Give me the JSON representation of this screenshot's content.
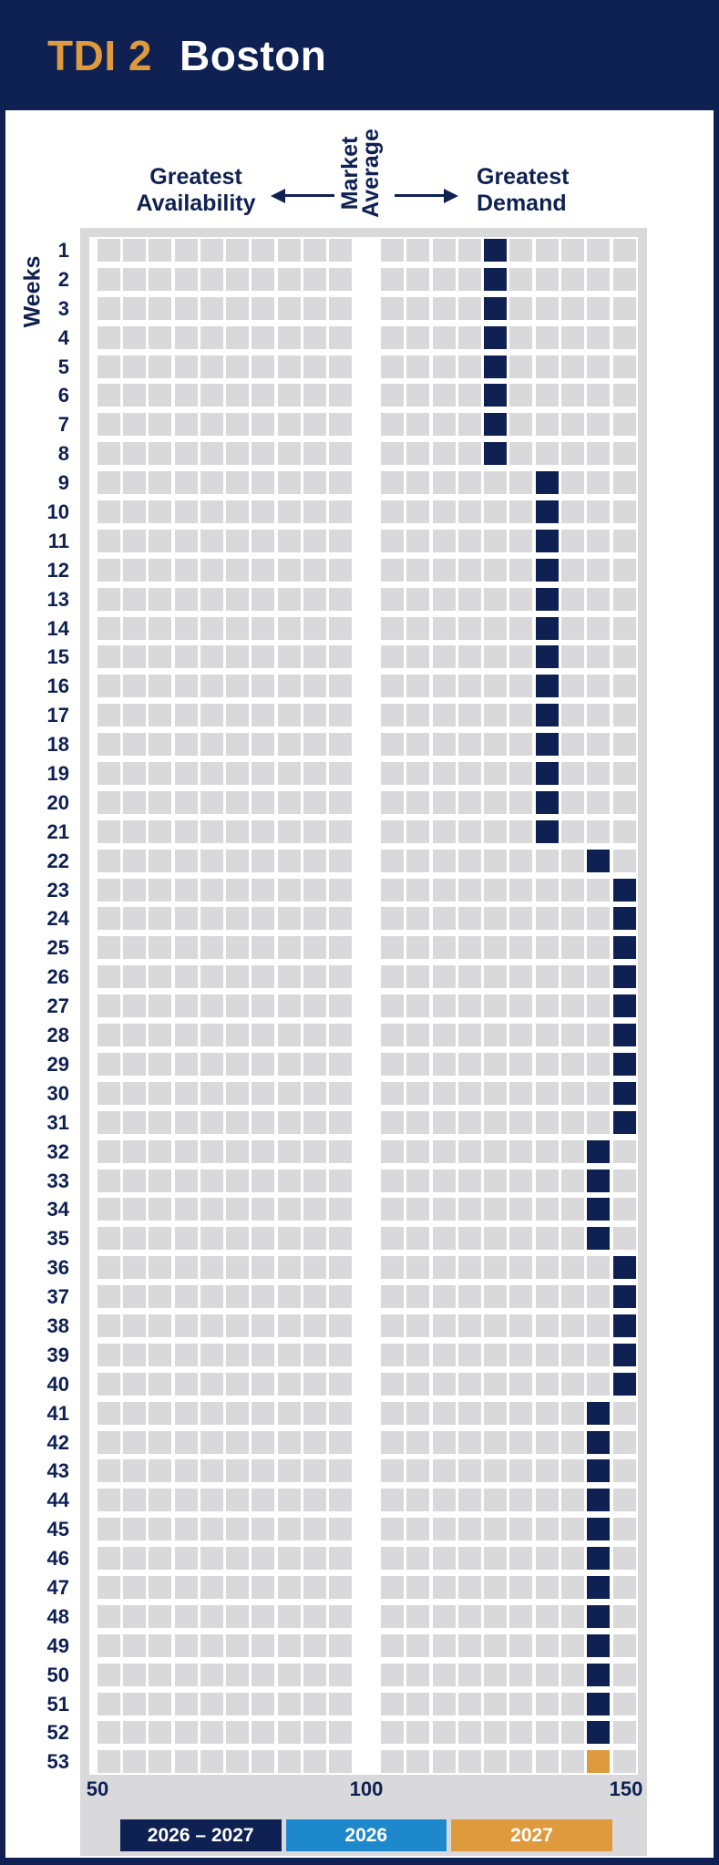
{
  "header": {
    "brand": "TDI 2",
    "city": "Boston"
  },
  "colors": {
    "navy": "#0e2152",
    "orange": "#df9a3d",
    "blue": "#1e88cd",
    "cell_gray": "#d9d9db",
    "panel_gray": "#d9d9db",
    "white": "#ffffff"
  },
  "top_axis": {
    "left_line1": "Greatest",
    "left_line2": "Availability",
    "center_line1": "Market",
    "center_line2": "Average",
    "right_line1": "Greatest",
    "right_line2": "Demand"
  },
  "y_axis_label": "Weeks",
  "legend": [
    {
      "label": "2026 – 2027",
      "color": "#0e2152"
    },
    {
      "label": "2026",
      "color": "#1e88cd"
    },
    {
      "label": "2027",
      "color": "#df9a3d"
    }
  ],
  "chart_data": {
    "type": "heatmap",
    "title": "TDI 2 Boston",
    "x_axis": {
      "min": 50,
      "max": 150,
      "ticks": [
        50,
        100,
        150
      ],
      "bucket_size": 5,
      "market_average": 100,
      "left_label": "Greatest Availability",
      "center_label": "Market Average",
      "right_label": "Greatest Demand",
      "columns_per_side": 10
    },
    "y_axis": {
      "label": "Weeks",
      "min": 1,
      "max": 53
    },
    "legend_position": "bottom",
    "weeks": [
      {
        "week": 1,
        "bucket": [
          120,
          125
        ],
        "series": "2026 – 2027"
      },
      {
        "week": 2,
        "bucket": [
          120,
          125
        ],
        "series": "2026 – 2027"
      },
      {
        "week": 3,
        "bucket": [
          120,
          125
        ],
        "series": "2026 – 2027"
      },
      {
        "week": 4,
        "bucket": [
          120,
          125
        ],
        "series": "2026 – 2027"
      },
      {
        "week": 5,
        "bucket": [
          120,
          125
        ],
        "series": "2026 – 2027"
      },
      {
        "week": 6,
        "bucket": [
          120,
          125
        ],
        "series": "2026 – 2027"
      },
      {
        "week": 7,
        "bucket": [
          120,
          125
        ],
        "series": "2026 – 2027"
      },
      {
        "week": 8,
        "bucket": [
          120,
          125
        ],
        "series": "2026 – 2027"
      },
      {
        "week": 9,
        "bucket": [
          130,
          135
        ],
        "series": "2026 – 2027"
      },
      {
        "week": 10,
        "bucket": [
          130,
          135
        ],
        "series": "2026 – 2027"
      },
      {
        "week": 11,
        "bucket": [
          130,
          135
        ],
        "series": "2026 – 2027"
      },
      {
        "week": 12,
        "bucket": [
          130,
          135
        ],
        "series": "2026 – 2027"
      },
      {
        "week": 13,
        "bucket": [
          130,
          135
        ],
        "series": "2026 – 2027"
      },
      {
        "week": 14,
        "bucket": [
          130,
          135
        ],
        "series": "2026 – 2027"
      },
      {
        "week": 15,
        "bucket": [
          130,
          135
        ],
        "series": "2026 – 2027"
      },
      {
        "week": 16,
        "bucket": [
          130,
          135
        ],
        "series": "2026 – 2027"
      },
      {
        "week": 17,
        "bucket": [
          130,
          135
        ],
        "series": "2026 – 2027"
      },
      {
        "week": 18,
        "bucket": [
          130,
          135
        ],
        "series": "2026 – 2027"
      },
      {
        "week": 19,
        "bucket": [
          130,
          135
        ],
        "series": "2026 – 2027"
      },
      {
        "week": 20,
        "bucket": [
          130,
          135
        ],
        "series": "2026 – 2027"
      },
      {
        "week": 21,
        "bucket": [
          130,
          135
        ],
        "series": "2026 – 2027"
      },
      {
        "week": 22,
        "bucket": [
          140,
          145
        ],
        "series": "2026 – 2027"
      },
      {
        "week": 23,
        "bucket": [
          145,
          150
        ],
        "series": "2026 – 2027"
      },
      {
        "week": 24,
        "bucket": [
          145,
          150
        ],
        "series": "2026 – 2027"
      },
      {
        "week": 25,
        "bucket": [
          145,
          150
        ],
        "series": "2026 – 2027"
      },
      {
        "week": 26,
        "bucket": [
          145,
          150
        ],
        "series": "2026 – 2027"
      },
      {
        "week": 27,
        "bucket": [
          145,
          150
        ],
        "series": "2026 – 2027"
      },
      {
        "week": 28,
        "bucket": [
          145,
          150
        ],
        "series": "2026 – 2027"
      },
      {
        "week": 29,
        "bucket": [
          145,
          150
        ],
        "series": "2026 – 2027"
      },
      {
        "week": 30,
        "bucket": [
          145,
          150
        ],
        "series": "2026 – 2027"
      },
      {
        "week": 31,
        "bucket": [
          145,
          150
        ],
        "series": "2026 – 2027"
      },
      {
        "week": 32,
        "bucket": [
          140,
          145
        ],
        "series": "2026 – 2027"
      },
      {
        "week": 33,
        "bucket": [
          140,
          145
        ],
        "series": "2026 – 2027"
      },
      {
        "week": 34,
        "bucket": [
          140,
          145
        ],
        "series": "2026 – 2027"
      },
      {
        "week": 35,
        "bucket": [
          140,
          145
        ],
        "series": "2026 – 2027"
      },
      {
        "week": 36,
        "bucket": [
          145,
          150
        ],
        "series": "2026 – 2027"
      },
      {
        "week": 37,
        "bucket": [
          145,
          150
        ],
        "series": "2026 – 2027"
      },
      {
        "week": 38,
        "bucket": [
          145,
          150
        ],
        "series": "2026 – 2027"
      },
      {
        "week": 39,
        "bucket": [
          145,
          150
        ],
        "series": "2026 – 2027"
      },
      {
        "week": 40,
        "bucket": [
          145,
          150
        ],
        "series": "2026 – 2027"
      },
      {
        "week": 41,
        "bucket": [
          140,
          145
        ],
        "series": "2026 – 2027"
      },
      {
        "week": 42,
        "bucket": [
          140,
          145
        ],
        "series": "2026 – 2027"
      },
      {
        "week": 43,
        "bucket": [
          140,
          145
        ],
        "series": "2026 – 2027"
      },
      {
        "week": 44,
        "bucket": [
          140,
          145
        ],
        "series": "2026 – 2027"
      },
      {
        "week": 45,
        "bucket": [
          140,
          145
        ],
        "series": "2026 – 2027"
      },
      {
        "week": 46,
        "bucket": [
          140,
          145
        ],
        "series": "2026 – 2027"
      },
      {
        "week": 47,
        "bucket": [
          140,
          145
        ],
        "series": "2026 – 2027"
      },
      {
        "week": 48,
        "bucket": [
          140,
          145
        ],
        "series": "2026 – 2027"
      },
      {
        "week": 49,
        "bucket": [
          140,
          145
        ],
        "series": "2026 – 2027"
      },
      {
        "week": 50,
        "bucket": [
          140,
          145
        ],
        "series": "2026 – 2027"
      },
      {
        "week": 51,
        "bucket": [
          140,
          145
        ],
        "series": "2026 – 2027"
      },
      {
        "week": 52,
        "bucket": [
          140,
          145
        ],
        "series": "2026 – 2027"
      },
      {
        "week": 53,
        "bucket": [
          140,
          145
        ],
        "series": "2027"
      }
    ]
  }
}
